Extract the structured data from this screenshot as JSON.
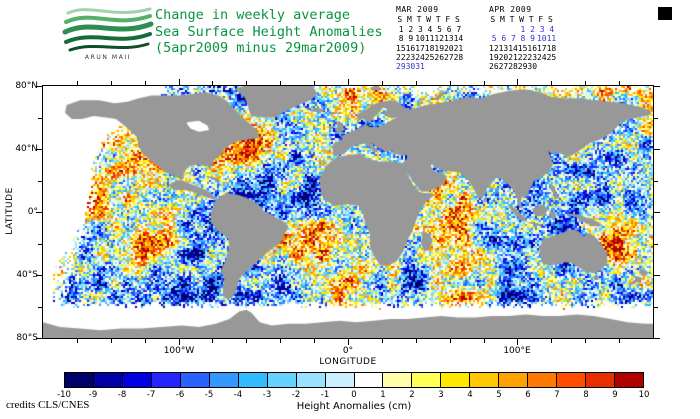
{
  "header": {
    "logo_caption": "ARUN MAII",
    "title_lines": [
      "Change in weekly average",
      "Sea Surface Height Anomalies",
      "(5apr2009 minus 29mar2009)"
    ],
    "title_color": "#0a9440"
  },
  "calendars": [
    {
      "title": "MAR 2009",
      "weekdays": [
        "S",
        "M",
        "T",
        "W",
        "T",
        "F",
        "S"
      ],
      "first_day_column": 0,
      "num_days": 31,
      "highlighted_days": [
        29,
        30,
        31
      ]
    },
    {
      "title": "APR 2009",
      "weekdays": [
        "S",
        "M",
        "T",
        "W",
        "T",
        "F",
        "S"
      ],
      "first_day_column": 3,
      "num_days": 30,
      "highlighted_days": [
        1,
        2,
        3,
        4,
        5,
        6,
        7,
        8,
        9,
        10,
        11
      ]
    }
  ],
  "highlight_color": "#3333cc",
  "map": {
    "ylabel": "LATITUDE",
    "xlabel": "LONGITUDE",
    "lat_ticks": [
      {
        "label": "80°N",
        "value": 80
      },
      {
        "label": "40°N",
        "value": 40
      },
      {
        "label": "0°",
        "value": 0
      },
      {
        "label": "40°S",
        "value": -40
      },
      {
        "label": "80°S",
        "value": -80
      }
    ],
    "lon_ticks": [
      {
        "label": "100°W",
        "value": -100
      },
      {
        "label": "0°",
        "value": 0
      },
      {
        "label": "100°E",
        "value": 100
      }
    ],
    "lat_range": [
      -80,
      80
    ],
    "lon_range": [
      -180,
      180
    ],
    "land_color": "#989898",
    "ice_color": "#ffffff"
  },
  "colorbar": {
    "title": "Height Anomalies (cm)",
    "tick_labels": [
      "-10",
      "-9",
      "-8",
      "-7",
      "-6",
      "-5",
      "-4",
      "-3",
      "-2",
      "-1",
      "0",
      "1",
      "2",
      "3",
      "4",
      "5",
      "6",
      "7",
      "8",
      "9",
      "10"
    ],
    "colors": [
      "#000069",
      "#0000a5",
      "#0000e1",
      "#2525ff",
      "#2a62ff",
      "#3399ff",
      "#33bbff",
      "#66d2ff",
      "#99e2ff",
      "#ccefff",
      "#ffffff",
      "#ffffaa",
      "#ffff55",
      "#ffe800",
      "#ffc800",
      "#ffa200",
      "#ff7a00",
      "#ff4d00",
      "#e62e00",
      "#b00000"
    ]
  },
  "credits": "credits CLS/CNES"
}
